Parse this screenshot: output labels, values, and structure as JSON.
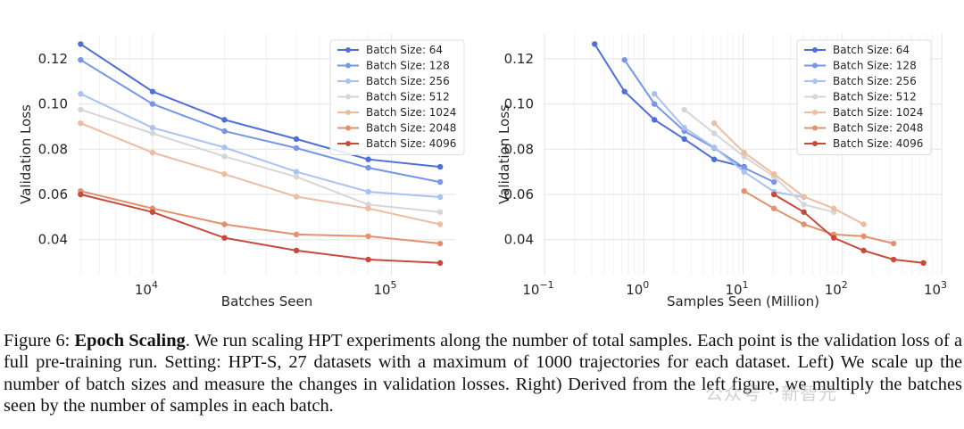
{
  "caption": {
    "prefix": "Figure 6: ",
    "title": "Epoch Scaling",
    "body": ". We run scaling HPT experiments along the number of total samples. Each point is the validation loss of a full pre-training run. Setting: HPT-S, 27 datasets with a maximum of 1000 trajectories for each dataset. Left) We scale up the number of batch sizes and measure the changes in validation losses. Right) Derived from the left figure, we multiply the batches seen by the number of samples in each batch."
  },
  "watermark": "公众号 · 新智元",
  "chart_data": [
    {
      "type": "line",
      "xscale": "log",
      "xlabel": "Batches Seen",
      "ylabel": "Validation Loss",
      "xlim": [
        4900,
        185000
      ],
      "ylim": [
        0.0245,
        0.131
      ],
      "xticks": [
        {
          "value": 10000,
          "base": "10",
          "exp": "4"
        },
        {
          "value": 100000,
          "base": "10",
          "exp": "5"
        }
      ],
      "yticks": [
        {
          "value": 0.04,
          "label": "0.04"
        },
        {
          "value": 0.06,
          "label": "0.06"
        },
        {
          "value": 0.08,
          "label": "0.08"
        },
        {
          "value": 0.1,
          "label": "0.10"
        },
        {
          "value": 0.12,
          "label": "0.12"
        }
      ],
      "grid": true,
      "legend": "top-right",
      "series": [
        {
          "name": "Batch Size: 64",
          "color": "#4f6fd6",
          "points": [
            [
              5000,
              0.1265
            ],
            [
              10000,
              0.1055
            ],
            [
              20000,
              0.093
            ],
            [
              40000,
              0.0845
            ],
            [
              80000,
              0.0755
            ],
            [
              160000,
              0.0722
            ]
          ]
        },
        {
          "name": "Batch Size: 128",
          "color": "#7796e6",
          "points": [
            [
              5000,
              0.1195
            ],
            [
              10000,
              0.1
            ],
            [
              20000,
              0.088
            ],
            [
              40000,
              0.0805
            ],
            [
              80000,
              0.0718
            ],
            [
              160000,
              0.0655
            ]
          ]
        },
        {
          "name": "Batch Size: 256",
          "color": "#a9c2f3",
          "points": [
            [
              5000,
              0.1045
            ],
            [
              10000,
              0.0895
            ],
            [
              20000,
              0.0808
            ],
            [
              40000,
              0.07
            ],
            [
              80000,
              0.0612
            ],
            [
              160000,
              0.0588
            ]
          ]
        },
        {
          "name": "Batch Size: 512",
          "color": "#d6d6d6",
          "points": [
            [
              5000,
              0.0975
            ],
            [
              10000,
              0.087
            ],
            [
              20000,
              0.0768
            ],
            [
              40000,
              0.0678
            ],
            [
              80000,
              0.0555
            ],
            [
              160000,
              0.0522
            ]
          ]
        },
        {
          "name": "Batch Size: 1024",
          "color": "#ebbda3",
          "points": [
            [
              5000,
              0.0915
            ],
            [
              10000,
              0.0785
            ],
            [
              20000,
              0.069
            ],
            [
              40000,
              0.059
            ],
            [
              80000,
              0.0538
            ],
            [
              160000,
              0.0468
            ]
          ]
        },
        {
          "name": "Batch Size: 2048",
          "color": "#e4906f",
          "points": [
            [
              5000,
              0.0615
            ],
            [
              10000,
              0.0538
            ],
            [
              20000,
              0.0468
            ],
            [
              40000,
              0.0423
            ],
            [
              80000,
              0.0415
            ],
            [
              160000,
              0.0383
            ]
          ]
        },
        {
          "name": "Batch Size: 4096",
          "color": "#c84a3d",
          "points": [
            [
              5000,
              0.06
            ],
            [
              10000,
              0.0522
            ],
            [
              20000,
              0.0408
            ],
            [
              40000,
              0.0352
            ],
            [
              80000,
              0.0312
            ],
            [
              160000,
              0.0297
            ]
          ]
        }
      ]
    },
    {
      "type": "line",
      "xscale": "log",
      "xlabel": "Samples Seen (Million)",
      "ylabel": "Validation Loss",
      "xlim": [
        0.1,
        1000
      ],
      "ylim": [
        0.0245,
        0.131
      ],
      "xticks": [
        {
          "value": 0.1,
          "base": "10",
          "exp": "−1"
        },
        {
          "value": 1,
          "base": "10",
          "exp": "0"
        },
        {
          "value": 10,
          "base": "10",
          "exp": "1"
        },
        {
          "value": 100,
          "base": "10",
          "exp": "2"
        },
        {
          "value": 1000,
          "base": "10",
          "exp": "3"
        }
      ],
      "yticks": [
        {
          "value": 0.04,
          "label": "0.04"
        },
        {
          "value": 0.06,
          "label": "0.06"
        },
        {
          "value": 0.08,
          "label": "0.08"
        },
        {
          "value": 0.1,
          "label": "0.10"
        },
        {
          "value": 0.12,
          "label": "0.12"
        }
      ],
      "grid": true,
      "legend": "top-right",
      "series": [
        {
          "name": "Batch Size: 64",
          "color": "#4f6fd6",
          "points": [
            [
              0.32,
              0.1265
            ],
            [
              0.64,
              0.1055
            ],
            [
              1.28,
              0.093
            ],
            [
              2.56,
              0.0845
            ],
            [
              5.12,
              0.0755
            ],
            [
              10.24,
              0.0722
            ]
          ]
        },
        {
          "name": "Batch Size: 128",
          "color": "#7796e6",
          "points": [
            [
              0.64,
              0.1195
            ],
            [
              1.28,
              0.1
            ],
            [
              2.56,
              0.088
            ],
            [
              5.12,
              0.0805
            ],
            [
              10.24,
              0.0718
            ],
            [
              20.48,
              0.0655
            ]
          ]
        },
        {
          "name": "Batch Size: 256",
          "color": "#a9c2f3",
          "points": [
            [
              1.28,
              0.1045
            ],
            [
              2.56,
              0.0895
            ],
            [
              5.12,
              0.0808
            ],
            [
              10.24,
              0.07
            ],
            [
              20.48,
              0.0612
            ],
            [
              40.96,
              0.0588
            ]
          ]
        },
        {
          "name": "Batch Size: 512",
          "color": "#d6d6d6",
          "points": [
            [
              2.56,
              0.0975
            ],
            [
              5.12,
              0.087
            ],
            [
              10.24,
              0.0768
            ],
            [
              20.48,
              0.0678
            ],
            [
              40.96,
              0.0555
            ],
            [
              81.92,
              0.0522
            ]
          ]
        },
        {
          "name": "Batch Size: 1024",
          "color": "#ebbda3",
          "points": [
            [
              5.12,
              0.0915
            ],
            [
              10.24,
              0.0785
            ],
            [
              20.48,
              0.069
            ],
            [
              40.96,
              0.059
            ],
            [
              81.92,
              0.0538
            ],
            [
              163.84,
              0.0468
            ]
          ]
        },
        {
          "name": "Batch Size: 2048",
          "color": "#e4906f",
          "points": [
            [
              10.24,
              0.0615
            ],
            [
              20.48,
              0.0538
            ],
            [
              40.96,
              0.0468
            ],
            [
              81.92,
              0.0423
            ],
            [
              163.84,
              0.0415
            ],
            [
              327.68,
              0.0383
            ]
          ]
        },
        {
          "name": "Batch Size: 4096",
          "color": "#c84a3d",
          "points": [
            [
              20.48,
              0.06
            ],
            [
              40.96,
              0.0522
            ],
            [
              81.92,
              0.0408
            ],
            [
              163.84,
              0.0352
            ],
            [
              327.68,
              0.0312
            ],
            [
              655.36,
              0.0297
            ]
          ]
        }
      ]
    }
  ]
}
